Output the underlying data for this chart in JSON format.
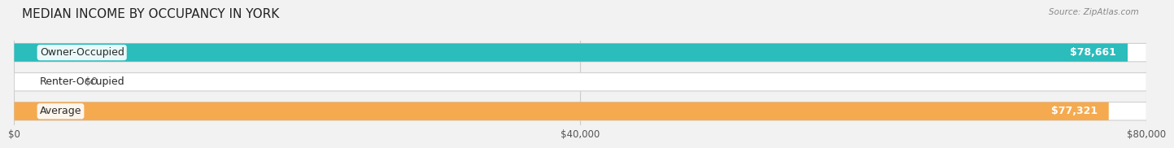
{
  "title": "MEDIAN INCOME BY OCCUPANCY IN YORK",
  "source": "Source: ZipAtlas.com",
  "categories": [
    "Owner-Occupied",
    "Renter-Occupied",
    "Average"
  ],
  "values": [
    78661,
    0,
    77321
  ],
  "bar_colors": [
    "#2bbcbc",
    "#c4a8d8",
    "#f5aa50"
  ],
  "value_labels": [
    "$78,661",
    "$0",
    "$77,321"
  ],
  "xlim": [
    0,
    80000
  ],
  "xticks": [
    0,
    40000,
    80000
  ],
  "xtick_labels": [
    "$0",
    "$40,000",
    "$80,000"
  ],
  "bar_height": 0.62,
  "background_color": "#f2f2f2",
  "bar_bg_color": "#e6e6e6",
  "title_fontsize": 11,
  "label_fontsize": 9,
  "value_fontsize": 9
}
